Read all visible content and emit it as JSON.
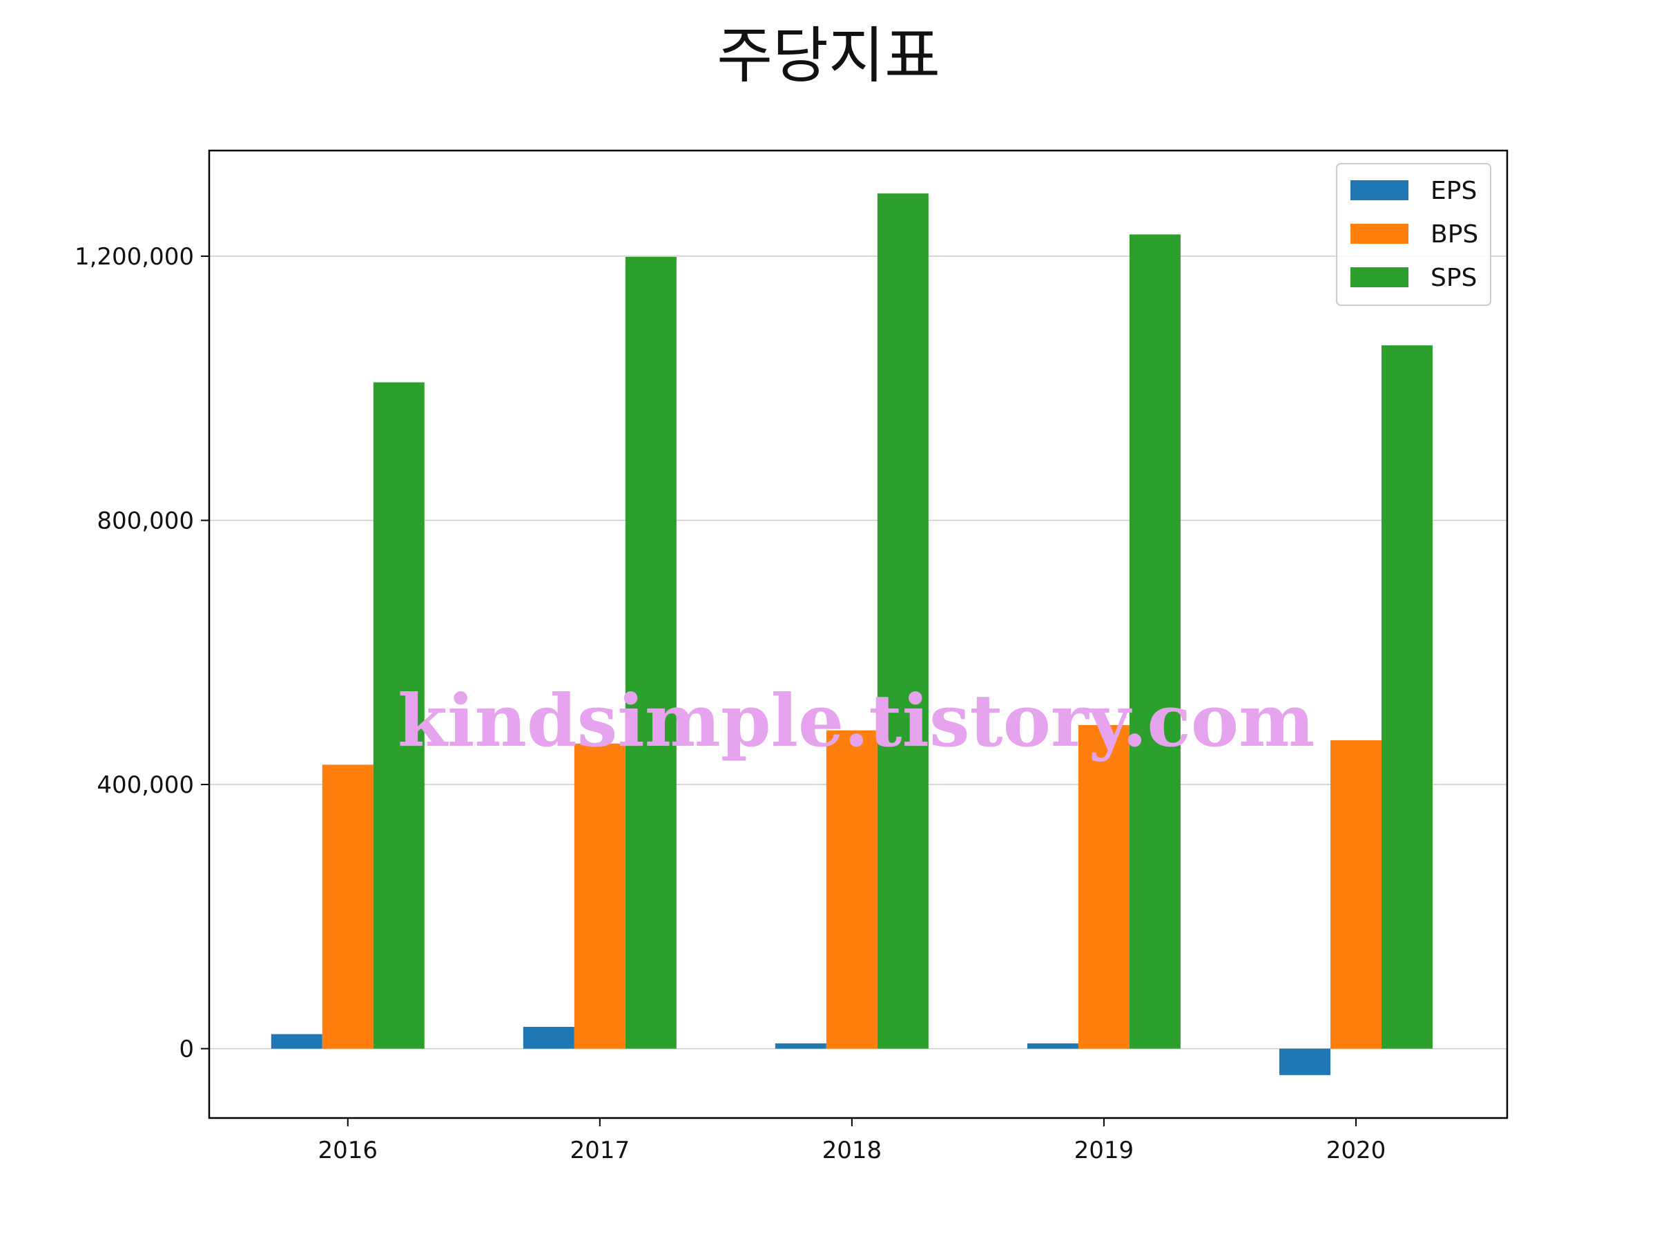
{
  "chart_data": {
    "type": "bar",
    "title": "주당지표",
    "categories": [
      "2016",
      "2017",
      "2018",
      "2019",
      "2020"
    ],
    "series": [
      {
        "name": "EPS",
        "color": "#1f77b4",
        "values": [
          22000,
          33000,
          8000,
          8000,
          -40000
        ]
      },
      {
        "name": "BPS",
        "color": "#ff7f0e",
        "values": [
          430000,
          462000,
          482000,
          490000,
          467000
        ]
      },
      {
        "name": "SPS",
        "color": "#2ca02c",
        "values": [
          1009000,
          1199000,
          1295000,
          1233000,
          1065000
        ]
      }
    ],
    "ylim": [
      -105000,
      1360000
    ],
    "yticks": [
      0,
      400000,
      800000,
      1200000
    ],
    "ytick_labels": [
      "0",
      "400,000",
      "800,000",
      "1,200,000"
    ],
    "grid": "horizontal",
    "legend_position": "top-right"
  },
  "watermark": "kindsimple.tistory.com"
}
